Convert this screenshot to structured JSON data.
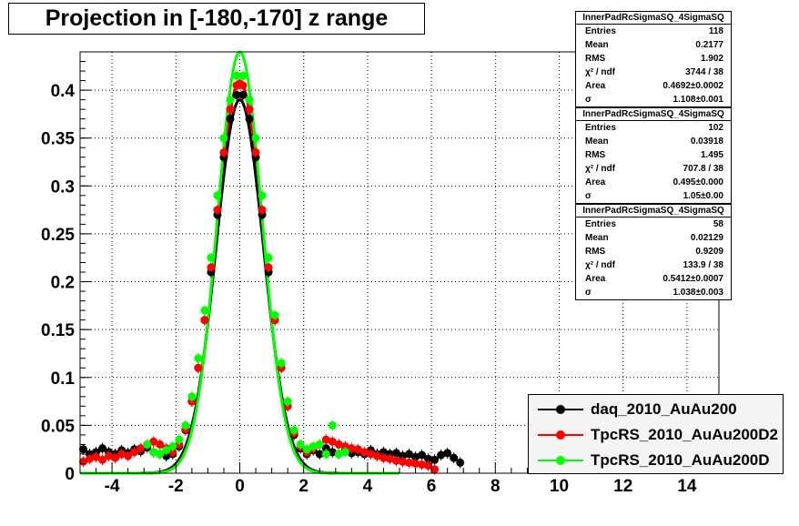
{
  "title": "Projection in [-180,-170] z range",
  "stats": [
    {
      "name": "InnerPadRcSigmaSQ_4SigmaSQ",
      "rows": [
        {
          "label": "Entries",
          "value": "118"
        },
        {
          "label": "Mean",
          "value": "0.2177"
        },
        {
          "label": "RMS",
          "value": "1.902"
        },
        {
          "label": "χ² / ndf",
          "value": "3744 / 38"
        },
        {
          "label": "Area",
          "value": "0.4692±0.0002"
        },
        {
          "label": "σ",
          "value": "1.108±0.001"
        }
      ]
    },
    {
      "name": "InnerPadRcSigmaSQ_4SigmaSQ",
      "rows": [
        {
          "label": "Entries",
          "value": "102"
        },
        {
          "label": "Mean",
          "value": "0.03918"
        },
        {
          "label": "RMS",
          "value": "1.495"
        },
        {
          "label": "χ² / ndf",
          "value": "707.8 / 38"
        },
        {
          "label": "Area",
          "value": "0.495±0.000"
        },
        {
          "label": "σ",
          "value": "1.05±0.00"
        }
      ]
    },
    {
      "name": "InnerPadRcSigmaSQ_4SigmaSQ",
      "rows": [
        {
          "label": "Entries",
          "value": "58"
        },
        {
          "label": "Mean",
          "value": "0.02129"
        },
        {
          "label": "RMS",
          "value": "0.9209"
        },
        {
          "label": "χ² / ndf",
          "value": "133.9 / 38"
        },
        {
          "label": "Area",
          "value": "0.5412±0.0007"
        },
        {
          "label": "σ",
          "value": "1.038±0.003"
        }
      ]
    }
  ],
  "legend": [
    {
      "label": "daq_2010_AuAu200",
      "color": "#000000"
    },
    {
      "label": "TpcRS_2010_AuAu200D2",
      "color": "#ff0000"
    },
    {
      "label": "TpcRS_2010_AuAu200D",
      "color": "#00ff00"
    }
  ],
  "chart_data": {
    "type": "scatter",
    "title": "Projection in [-180,-170] z range",
    "xlim": [
      -5,
      15
    ],
    "ylim": [
      0,
      0.44
    ],
    "grid": true,
    "x_ticks": [
      -4,
      -2,
      0,
      2,
      4,
      6,
      8,
      10,
      12,
      14
    ],
    "x_tick_labels": [
      "-4",
      "-2",
      "0",
      "2",
      "4",
      "6",
      "8",
      "10",
      "12",
      "14"
    ],
    "y_ticks": [
      0,
      0.05,
      0.1,
      0.15,
      0.2,
      0.25,
      0.3,
      0.35,
      0.4
    ],
    "y_tick_labels": [
      "0",
      "0.05",
      "0.1",
      "0.15",
      "0.2",
      "0.25",
      "0.3",
      "0.35",
      "0.4"
    ],
    "legend_position": "bottom-right",
    "series": [
      {
        "name": "daq_2010_AuAu200",
        "color": "#000000",
        "points": [
          [
            -4.9,
            0.025
          ],
          [
            -4.7,
            0.02
          ],
          [
            -4.5,
            0.022
          ],
          [
            -4.3,
            0.026
          ],
          [
            -4.1,
            0.022
          ],
          [
            -3.9,
            0.02
          ],
          [
            -3.7,
            0.024
          ],
          [
            -3.5,
            0.021
          ],
          [
            -3.3,
            0.025
          ],
          [
            -3.1,
            0.023
          ],
          [
            -2.9,
            0.027
          ],
          [
            -2.7,
            0.022
          ],
          [
            -2.5,
            0.02
          ],
          [
            -2.3,
            0.018
          ],
          [
            -2.1,
            0.02
          ],
          [
            -1.9,
            0.028
          ],
          [
            -1.7,
            0.045
          ],
          [
            -1.5,
            0.075
          ],
          [
            -1.3,
            0.11
          ],
          [
            -1.1,
            0.16
          ],
          [
            -0.9,
            0.21
          ],
          [
            -0.7,
            0.27
          ],
          [
            -0.5,
            0.33
          ],
          [
            -0.3,
            0.37
          ],
          [
            -0.1,
            0.395
          ],
          [
            0.1,
            0.395
          ],
          [
            0.3,
            0.37
          ],
          [
            0.5,
            0.33
          ],
          [
            0.7,
            0.27
          ],
          [
            0.9,
            0.21
          ],
          [
            1.1,
            0.16
          ],
          [
            1.3,
            0.11
          ],
          [
            1.5,
            0.07
          ],
          [
            1.7,
            0.04
          ],
          [
            1.9,
            0.026
          ],
          [
            2.1,
            0.02
          ],
          [
            2.3,
            0.024
          ],
          [
            2.5,
            0.02
          ],
          [
            2.7,
            0.026
          ],
          [
            2.9,
            0.022
          ],
          [
            3.1,
            0.02
          ],
          [
            3.3,
            0.024
          ],
          [
            3.5,
            0.021
          ],
          [
            3.7,
            0.022
          ],
          [
            3.9,
            0.02
          ],
          [
            4.1,
            0.024
          ],
          [
            4.3,
            0.02
          ],
          [
            4.5,
            0.022
          ],
          [
            4.7,
            0.02
          ],
          [
            4.9,
            0.021
          ],
          [
            5.1,
            0.018
          ],
          [
            5.3,
            0.02
          ],
          [
            5.5,
            0.017
          ],
          [
            5.7,
            0.019
          ],
          [
            5.9,
            0.015
          ],
          [
            6.1,
            0.014
          ],
          [
            6.3,
            0.019
          ],
          [
            6.5,
            0.021
          ],
          [
            6.7,
            0.016
          ],
          [
            6.9,
            0.011
          ]
        ]
      },
      {
        "name": "TpcRS_2010_AuAu200D2",
        "color": "#ff0000",
        "points": [
          [
            -4.9,
            0.012
          ],
          [
            -4.7,
            0.015
          ],
          [
            -4.5,
            0.017
          ],
          [
            -4.3,
            0.014
          ],
          [
            -4.1,
            0.018
          ],
          [
            -3.9,
            0.016
          ],
          [
            -3.7,
            0.02
          ],
          [
            -3.5,
            0.018
          ],
          [
            -3.3,
            0.022
          ],
          [
            -3.1,
            0.026
          ],
          [
            -2.9,
            0.03
          ],
          [
            -2.7,
            0.033
          ],
          [
            -2.5,
            0.03
          ],
          [
            -2.3,
            0.026
          ],
          [
            -2.1,
            0.022
          ],
          [
            -1.9,
            0.03
          ],
          [
            -1.7,
            0.046
          ],
          [
            -1.5,
            0.075
          ],
          [
            -1.3,
            0.11
          ],
          [
            -1.1,
            0.16
          ],
          [
            -0.9,
            0.215
          ],
          [
            -0.7,
            0.275
          ],
          [
            -0.5,
            0.335
          ],
          [
            -0.3,
            0.38
          ],
          [
            -0.1,
            0.405
          ],
          [
            0.1,
            0.405
          ],
          [
            0.3,
            0.38
          ],
          [
            0.5,
            0.335
          ],
          [
            0.7,
            0.275
          ],
          [
            0.9,
            0.215
          ],
          [
            1.1,
            0.16
          ],
          [
            1.3,
            0.11
          ],
          [
            1.5,
            0.07
          ],
          [
            1.7,
            0.042
          ],
          [
            1.9,
            0.028
          ],
          [
            2.1,
            0.022
          ],
          [
            2.3,
            0.026
          ],
          [
            2.5,
            0.03
          ],
          [
            2.7,
            0.035
          ],
          [
            2.9,
            0.033
          ],
          [
            3.1,
            0.03
          ],
          [
            3.3,
            0.028
          ],
          [
            3.5,
            0.026
          ],
          [
            3.7,
            0.025
          ],
          [
            3.9,
            0.022
          ],
          [
            4.1,
            0.02
          ],
          [
            4.3,
            0.018
          ],
          [
            4.5,
            0.016
          ],
          [
            4.7,
            0.015
          ],
          [
            4.9,
            0.013
          ],
          [
            5.1,
            0.012
          ],
          [
            5.3,
            0.011
          ],
          [
            5.5,
            0.01
          ],
          [
            5.7,
            0.009
          ],
          [
            5.9,
            0.008
          ],
          [
            6.1,
            0.004
          ]
        ]
      },
      {
        "name": "TpcRS_2010_AuAu200D",
        "color": "#00ff00",
        "points": [
          [
            -2.9,
            0.03
          ],
          [
            -2.7,
            0.022
          ],
          [
            -2.5,
            0.02
          ],
          [
            -2.3,
            0.024
          ],
          [
            -2.1,
            0.028
          ],
          [
            -1.9,
            0.035
          ],
          [
            -1.7,
            0.05
          ],
          [
            -1.5,
            0.08
          ],
          [
            -1.3,
            0.12
          ],
          [
            -1.1,
            0.17
          ],
          [
            -0.9,
            0.225
          ],
          [
            -0.7,
            0.29
          ],
          [
            -0.5,
            0.35
          ],
          [
            -0.3,
            0.39
          ],
          [
            -0.1,
            0.415
          ],
          [
            0.1,
            0.415
          ],
          [
            0.3,
            0.39
          ],
          [
            0.5,
            0.35
          ],
          [
            0.7,
            0.29
          ],
          [
            0.9,
            0.225
          ],
          [
            1.1,
            0.165
          ],
          [
            1.3,
            0.115
          ],
          [
            1.5,
            0.075
          ],
          [
            1.7,
            0.045
          ],
          [
            1.9,
            0.03
          ],
          [
            2.1,
            0.025
          ],
          [
            2.3,
            0.028
          ],
          [
            2.5,
            0.03
          ],
          [
            2.7,
            0.02
          ],
          [
            2.9,
            0.05
          ],
          [
            3.1,
            0.02
          ],
          [
            3.3,
            0.022
          ]
        ]
      }
    ],
    "fit_curves": [
      {
        "name": "TpcRS_2010_AuAu200D2",
        "color": "#ff0000",
        "peak": 0.41,
        "sigma": 0.72
      },
      {
        "name": "daq_2010_AuAu200",
        "color": "#000000",
        "peak": 0.39,
        "sigma": 0.74
      },
      {
        "name": "TpcRS_2010_AuAu200D",
        "color": "#00ff00",
        "peak": 0.44,
        "sigma": 0.7
      }
    ]
  }
}
